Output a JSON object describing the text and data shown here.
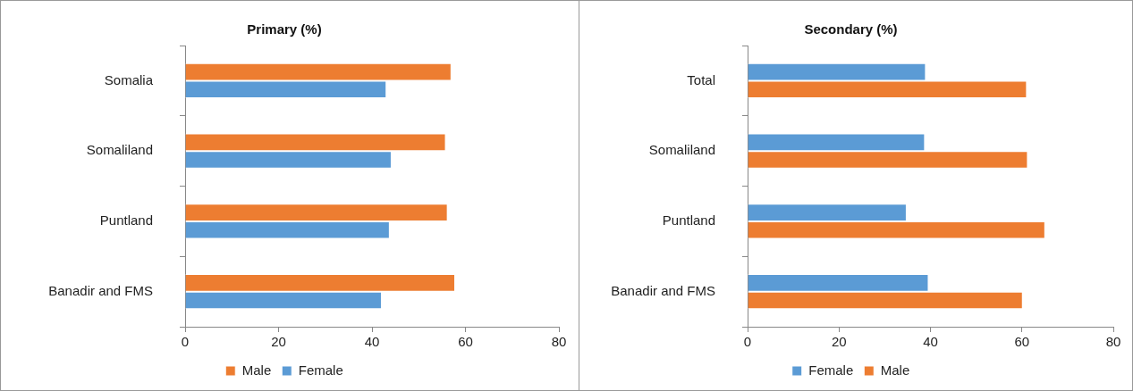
{
  "chart_data": [
    {
      "type": "bar",
      "orientation": "horizontal",
      "title": "Primary (%)",
      "categories": [
        "Somalia",
        "Somaliland",
        "Puntland",
        "Banadir and FMS"
      ],
      "series": [
        {
          "name": "Male",
          "color": "#ed7d31",
          "values": [
            57.0,
            55.8,
            56.2,
            57.8
          ]
        },
        {
          "name": "Female",
          "color": "#5b9bd5",
          "values": [
            43.1,
            44.2,
            43.8,
            42.1
          ]
        }
      ],
      "xlim": [
        0,
        80
      ],
      "xticks": [
        0,
        20,
        40,
        60,
        80
      ],
      "grid": false,
      "legend": "bottom"
    },
    {
      "type": "bar",
      "orientation": "horizontal",
      "title": "Secondary (%)",
      "categories": [
        "Total",
        "Somaliland",
        "Puntland",
        "Banadir and FMS"
      ],
      "series": [
        {
          "name": "Female",
          "color": "#5b9bd5",
          "values": [
            39.0,
            38.8,
            34.8,
            39.6
          ]
        },
        {
          "name": "Male",
          "color": "#ed7d31",
          "values": [
            61.1,
            61.3,
            65.1,
            60.2
          ]
        }
      ],
      "xlim": [
        0,
        80
      ],
      "xticks": [
        0,
        20,
        40,
        60,
        80
      ],
      "grid": false,
      "legend": "bottom"
    }
  ]
}
